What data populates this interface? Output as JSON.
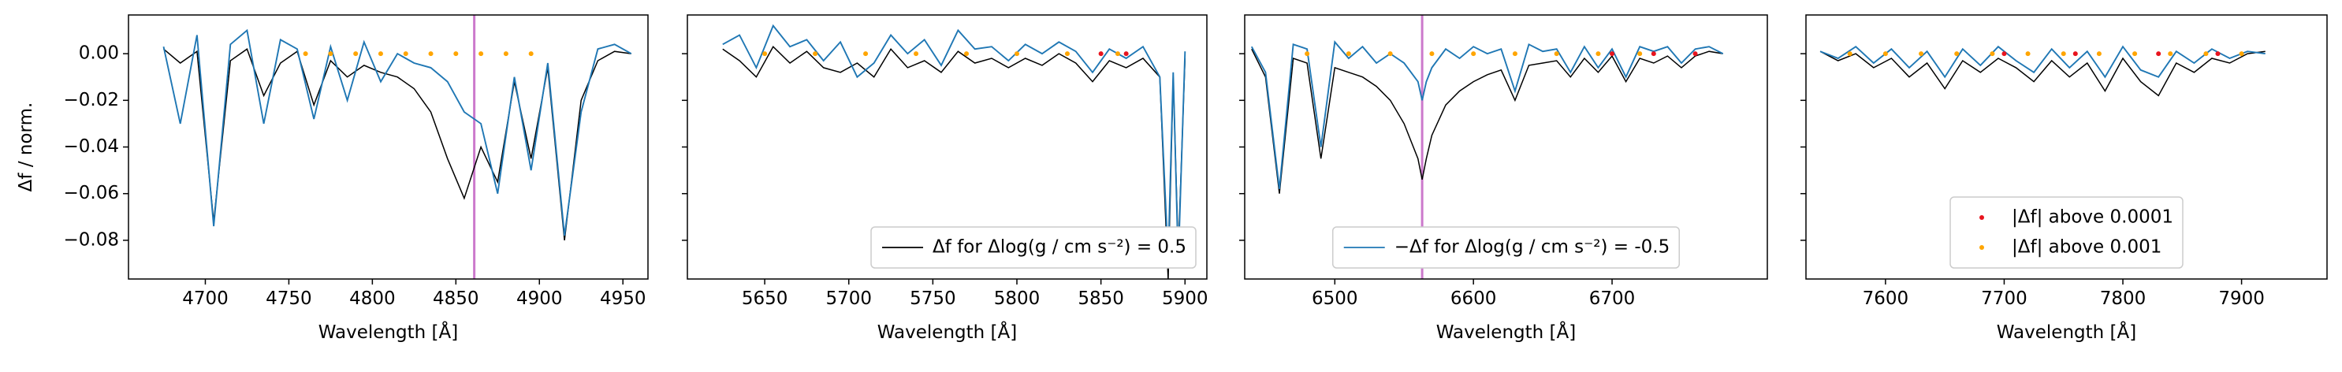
{
  "chart_data": [
    {
      "type": "line",
      "xlabel": "Wavelength [Å]",
      "ylabel": "Δf / norm.",
      "xlim": [
        4654,
        4965
      ],
      "xticks": [
        4700,
        4750,
        4800,
        4850,
        4900,
        4950
      ],
      "ylim": [
        -0.0966,
        0.0166
      ],
      "yticks": [
        {
          "value": -0.08,
          "label": "−0.08"
        },
        {
          "value": -0.06,
          "label": "−0.06"
        },
        {
          "value": -0.04,
          "label": "−0.04"
        },
        {
          "value": -0.02,
          "label": "−0.02"
        },
        {
          "value": 0,
          "label": "0.00"
        }
      ],
      "vline": 4861,
      "vline_color": "#cc79cc",
      "series": [
        {
          "color": "#000000",
          "style": "line",
          "x": [
            4675,
            4685,
            4695,
            4705,
            4715,
            4725,
            4735,
            4745,
            4755,
            4765,
            4775,
            4785,
            4795,
            4805,
            4815,
            4825,
            4835,
            4845,
            4855,
            4865,
            4875,
            4885,
            4895,
            4905,
            4915,
            4925,
            4935,
            4945,
            4955
          ],
          "values": [
            0.002,
            -0.004,
            0.001,
            -0.072,
            -0.003,
            0.002,
            -0.018,
            -0.004,
            0.001,
            -0.022,
            -0.003,
            -0.01,
            -0.005,
            -0.008,
            -0.01,
            -0.015,
            -0.025,
            -0.045,
            -0.062,
            -0.04,
            -0.055,
            -0.012,
            -0.045,
            -0.006,
            -0.08,
            -0.02,
            -0.003,
            0.001,
            0
          ]
        },
        {
          "color": "#1f77b4",
          "style": "line",
          "x": [
            4675,
            4685,
            4695,
            4705,
            4715,
            4725,
            4735,
            4745,
            4755,
            4765,
            4775,
            4785,
            4795,
            4805,
            4815,
            4825,
            4835,
            4845,
            4855,
            4865,
            4875,
            4885,
            4895,
            4905,
            4915,
            4925,
            4935,
            4945,
            4955
          ],
          "values": [
            0.003,
            -0.03,
            0.008,
            -0.074,
            0.004,
            0.01,
            -0.03,
            0.006,
            0.002,
            -0.028,
            0.003,
            -0.02,
            0.005,
            -0.012,
            0,
            -0.004,
            -0.006,
            -0.012,
            -0.025,
            -0.03,
            -0.06,
            -0.01,
            -0.05,
            -0.004,
            -0.078,
            -0.025,
            0.002,
            0.004,
            0
          ]
        },
        {
          "color": "#ffa500",
          "style": "dots",
          "x": [
            4760,
            4775,
            4790,
            4805,
            4820,
            4835,
            4850,
            4865,
            4880,
            4895
          ],
          "values": [
            0,
            0,
            0,
            0,
            0,
            0,
            0,
            0,
            0,
            0
          ]
        }
      ]
    },
    {
      "type": "line",
      "xlabel": "Wavelength [Å]",
      "sharey": true,
      "xlim": [
        5604,
        5913
      ],
      "xticks": [
        5650,
        5700,
        5750,
        5800,
        5850,
        5900
      ],
      "legend": "lower right",
      "series": [
        {
          "name": "Δf for Δlog(g / cm s⁻²) = 0.5",
          "color": "#000000",
          "style": "line",
          "x": [
            5625,
            5635,
            5645,
            5655,
            5665,
            5675,
            5685,
            5695,
            5705,
            5715,
            5725,
            5735,
            5745,
            5755,
            5765,
            5775,
            5785,
            5795,
            5805,
            5815,
            5825,
            5835,
            5845,
            5855,
            5865,
            5875,
            5885,
            5890,
            5893,
            5896,
            5900
          ],
          "values": [
            0.002,
            -0.003,
            -0.01,
            0.003,
            -0.004,
            0.001,
            -0.006,
            -0.008,
            -0.004,
            -0.01,
            0.002,
            -0.006,
            -0.003,
            -0.008,
            0.001,
            -0.004,
            -0.002,
            -0.006,
            -0.002,
            -0.005,
            0,
            -0.004,
            -0.012,
            -0.003,
            -0.006,
            -0.002,
            -0.01,
            -0.097,
            -0.01,
            -0.085,
            -0.002
          ]
        },
        {
          "color": "#1f77b4",
          "style": "line",
          "x": [
            5625,
            5635,
            5645,
            5655,
            5665,
            5675,
            5685,
            5695,
            5705,
            5715,
            5725,
            5735,
            5745,
            5755,
            5765,
            5775,
            5785,
            5795,
            5805,
            5815,
            5825,
            5835,
            5845,
            5855,
            5865,
            5875,
            5885,
            5890,
            5893,
            5896,
            5900
          ],
          "values": [
            0.004,
            0.008,
            -0.006,
            0.012,
            0.003,
            0.006,
            -0.003,
            0.005,
            -0.01,
            -0.004,
            0.008,
            0,
            0.006,
            -0.005,
            0.01,
            0.002,
            0.003,
            -0.003,
            0.004,
            0,
            0.005,
            0.001,
            -0.008,
            0.002,
            -0.002,
            0.003,
            -0.01,
            -0.088,
            -0.008,
            -0.09,
            0.001
          ]
        },
        {
          "color": "#ffa500",
          "style": "dots",
          "x": [
            5650,
            5680,
            5710,
            5740,
            5770,
            5800,
            5830,
            5860
          ],
          "values": [
            0,
            0,
            0,
            0,
            0,
            0,
            0,
            0
          ]
        },
        {
          "color": "#e8141e",
          "style": "dots",
          "x": [
            5850,
            5865
          ],
          "values": [
            0,
            0
          ]
        }
      ]
    },
    {
      "type": "line",
      "xlabel": "Wavelength [Å]",
      "sharey": true,
      "xlim": [
        6435,
        6812
      ],
      "xticks": [
        6500,
        6600,
        6700
      ],
      "vline": 6563,
      "vline_color": "#cc79cc",
      "legend": "lower center",
      "series": [
        {
          "color": "#000000",
          "style": "line",
          "x": [
            6440,
            6450,
            6460,
            6470,
            6480,
            6490,
            6500,
            6510,
            6520,
            6530,
            6540,
            6550,
            6560,
            6563,
            6566,
            6570,
            6580,
            6590,
            6600,
            6610,
            6620,
            6630,
            6640,
            6650,
            6660,
            6670,
            6680,
            6690,
            6700,
            6710,
            6720,
            6730,
            6740,
            6750,
            6760,
            6770,
            6780
          ],
          "values": [
            0.002,
            -0.01,
            -0.06,
            -0.002,
            -0.004,
            -0.045,
            -0.006,
            -0.008,
            -0.01,
            -0.014,
            -0.02,
            -0.03,
            -0.045,
            -0.054,
            -0.045,
            -0.035,
            -0.022,
            -0.016,
            -0.012,
            -0.009,
            -0.007,
            -0.02,
            -0.005,
            -0.004,
            -0.003,
            -0.01,
            -0.002,
            -0.008,
            -0.001,
            -0.012,
            -0.002,
            -0.004,
            -0.001,
            -0.006,
            -0.001,
            0.001,
            0
          ]
        },
        {
          "name": "−Δf for Δlog(g / cm s⁻²) = -0.5",
          "color": "#1f77b4",
          "style": "line",
          "x": [
            6440,
            6450,
            6460,
            6470,
            6480,
            6490,
            6500,
            6510,
            6520,
            6530,
            6540,
            6550,
            6560,
            6563,
            6566,
            6570,
            6580,
            6590,
            6600,
            6610,
            6620,
            6630,
            6640,
            6650,
            6660,
            6670,
            6680,
            6690,
            6700,
            6710,
            6720,
            6730,
            6740,
            6750,
            6760,
            6770,
            6780
          ],
          "values": [
            0.003,
            -0.008,
            -0.058,
            0.004,
            0.002,
            -0.04,
            0.005,
            -0.002,
            0.003,
            -0.004,
            0,
            -0.004,
            -0.012,
            -0.02,
            -0.012,
            -0.006,
            0.002,
            -0.002,
            0.003,
            0,
            0.002,
            -0.016,
            0.004,
            0.001,
            0.002,
            -0.008,
            0.003,
            -0.006,
            0.002,
            -0.01,
            0.003,
            0.001,
            0.003,
            -0.004,
            0.002,
            0.003,
            0
          ]
        },
        {
          "color": "#ffa500",
          "style": "dots",
          "x": [
            6480,
            6510,
            6540,
            6570,
            6600,
            6630,
            6660,
            6690,
            6720
          ],
          "values": [
            0,
            0,
            0,
            0,
            0,
            0,
            0,
            0,
            0
          ]
        },
        {
          "color": "#e8141e",
          "style": "dots",
          "x": [
            6700,
            6730,
            6760
          ],
          "values": [
            0,
            0,
            0
          ]
        }
      ]
    },
    {
      "type": "line",
      "xlabel": "Wavelength [Å]",
      "sharey": true,
      "xlim": [
        7533,
        7972
      ],
      "xticks": [
        7600,
        7700,
        7800,
        7900
      ],
      "legend": "lower center",
      "series": [
        {
          "color": "#000000",
          "style": "line",
          "x": [
            7545,
            7560,
            7575,
            7590,
            7605,
            7620,
            7635,
            7650,
            7665,
            7680,
            7695,
            7710,
            7725,
            7740,
            7755,
            7770,
            7785,
            7800,
            7815,
            7830,
            7845,
            7860,
            7875,
            7890,
            7905,
            7920
          ],
          "values": [
            0.001,
            -0.003,
            0,
            -0.006,
            -0.002,
            -0.01,
            -0.004,
            -0.015,
            -0.003,
            -0.008,
            -0.002,
            -0.006,
            -0.012,
            -0.003,
            -0.01,
            -0.004,
            -0.016,
            -0.002,
            -0.012,
            -0.018,
            -0.004,
            -0.008,
            -0.002,
            -0.004,
            0,
            0.001
          ]
        },
        {
          "color": "#1f77b4",
          "style": "line",
          "x": [
            7545,
            7560,
            7575,
            7590,
            7605,
            7620,
            7635,
            7650,
            7665,
            7680,
            7695,
            7710,
            7725,
            7740,
            7755,
            7770,
            7785,
            7800,
            7815,
            7830,
            7845,
            7860,
            7875,
            7890,
            7905,
            7920
          ],
          "values": [
            0.001,
            -0.002,
            0.003,
            -0.004,
            0.002,
            -0.006,
            0.001,
            -0.01,
            0.002,
            -0.005,
            0.003,
            -0.003,
            -0.008,
            0.002,
            -0.006,
            0.001,
            -0.01,
            0.003,
            -0.007,
            -0.01,
            0.001,
            -0.004,
            0.002,
            -0.002,
            0.001,
            0
          ]
        },
        {
          "name": "|Δf| above 0.0001",
          "color": "#e8141e",
          "style": "dots",
          "x": [
            7700,
            7760,
            7830,
            7880
          ],
          "values": [
            0,
            0,
            0,
            0
          ]
        },
        {
          "name": "|Δf| above 0.001",
          "color": "#ffa500",
          "style": "dots",
          "x": [
            7570,
            7600,
            7630,
            7660,
            7690,
            7720,
            7750,
            7780,
            7810,
            7840,
            7870,
            7900
          ],
          "values": [
            0,
            0,
            0,
            0,
            0,
            0,
            0,
            0,
            0,
            0,
            0,
            0
          ]
        }
      ]
    }
  ]
}
